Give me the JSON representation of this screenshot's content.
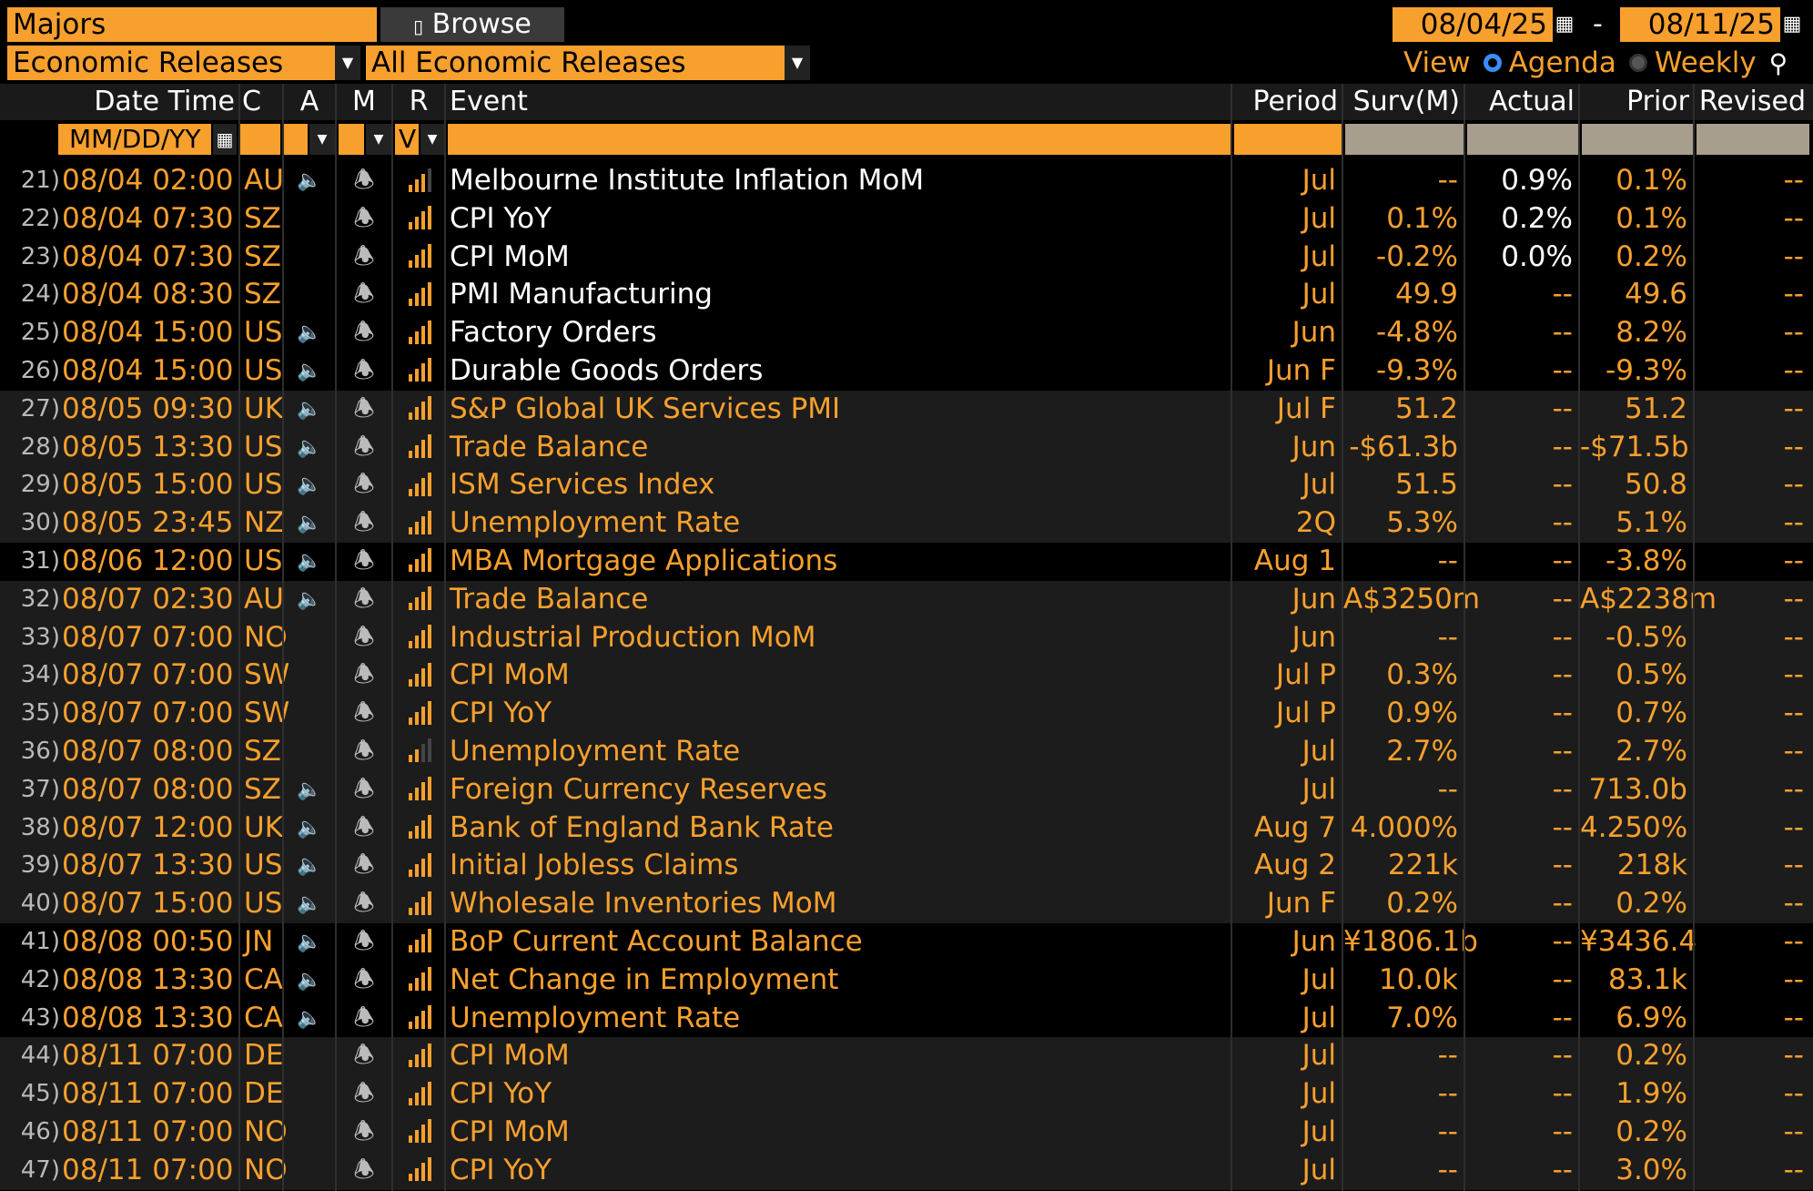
{
  "toolbar": {
    "list_name": "Majors",
    "browse_label": "Browse",
    "category": "Economic Releases",
    "filter": "All Economic Releases",
    "start_date": "08/04/25",
    "end_date": "08/11/25",
    "date_separator": "-",
    "view_label": "View",
    "agenda_label": "Agenda",
    "weekly_label": "Weekly",
    "selected_view": "Agenda"
  },
  "columns": {
    "datetime": "Date Time",
    "country": "C",
    "alert": "A",
    "memo": "M",
    "relevance": "R",
    "event": "Event",
    "period": "Period",
    "survey": "Surv(M)",
    "actual": "Actual",
    "prior": "Prior",
    "revised": "Revised"
  },
  "filters": {
    "date_placeholder": "MM/DD/YY",
    "relevance_value": "V"
  },
  "icons": {
    "browse": "book-icon",
    "calendar": "calendar-icon",
    "speaker": "speaker-icon",
    "bell": "bell-icon",
    "relevance": "signal-bars-icon",
    "search": "person-search-icon",
    "dropdown": "chevron-down-icon"
  },
  "colors": {
    "accent": "#f7a02d",
    "radio_selected": "#3b8df2"
  },
  "rows": [
    {
      "n": "21)",
      "dt": "08/04 02:00",
      "c": "AU",
      "spk": true,
      "rel": 3,
      "event": "Melbourne Institute Inflation MoM",
      "period": "Jul",
      "surv": "--",
      "actual": "0.9%",
      "prior": "0.1%",
      "revised": "--",
      "released": true
    },
    {
      "n": "22)",
      "dt": "08/04 07:30",
      "c": "SZ",
      "spk": false,
      "rel": 4,
      "event": "CPI YoY",
      "period": "Jul",
      "surv": "0.1%",
      "actual": "0.2%",
      "prior": "0.1%",
      "revised": "--",
      "released": true
    },
    {
      "n": "23)",
      "dt": "08/04 07:30",
      "c": "SZ",
      "spk": false,
      "rel": 4,
      "event": "CPI MoM",
      "period": "Jul",
      "surv": "-0.2%",
      "actual": "0.0%",
      "prior": "0.2%",
      "revised": "--",
      "released": true
    },
    {
      "n": "24)",
      "dt": "08/04 08:30",
      "c": "SZ",
      "spk": false,
      "rel": 4,
      "event": "PMI Manufacturing",
      "period": "Jul",
      "surv": "49.9",
      "actual": "--",
      "prior": "49.6",
      "revised": "--",
      "released": true
    },
    {
      "n": "25)",
      "dt": "08/04 15:00",
      "c": "US",
      "spk": true,
      "rel": 4,
      "event": "Factory Orders",
      "period": "Jun",
      "surv": "-4.8%",
      "actual": "--",
      "prior": "8.2%",
      "revised": "--",
      "released": true
    },
    {
      "n": "26)",
      "dt": "08/04 15:00",
      "c": "US",
      "spk": true,
      "rel": 4,
      "event": "Durable Goods Orders",
      "period": "Jun F",
      "surv": "-9.3%",
      "actual": "--",
      "prior": "-9.3%",
      "revised": "--",
      "released": true
    },
    {
      "n": "27)",
      "dt": "08/05 09:30",
      "c": "UK",
      "spk": true,
      "rel": 4,
      "event": "S&P Global UK Services PMI",
      "period": "Jul F",
      "surv": "51.2",
      "actual": "--",
      "prior": "51.2",
      "revised": "--",
      "released": false
    },
    {
      "n": "28)",
      "dt": "08/05 13:30",
      "c": "US",
      "spk": true,
      "rel": 4,
      "event": "Trade Balance",
      "period": "Jun",
      "surv": "-$61.3b",
      "actual": "--",
      "prior": "-$71.5b",
      "revised": "--",
      "released": false
    },
    {
      "n": "29)",
      "dt": "08/05 15:00",
      "c": "US",
      "spk": true,
      "rel": 4,
      "event": "ISM Services Index",
      "period": "Jul",
      "surv": "51.5",
      "actual": "--",
      "prior": "50.8",
      "revised": "--",
      "released": false
    },
    {
      "n": "30)",
      "dt": "08/05 23:45",
      "c": "NZ",
      "spk": true,
      "rel": 4,
      "event": "Unemployment Rate",
      "period": "2Q",
      "surv": "5.3%",
      "actual": "--",
      "prior": "5.1%",
      "revised": "--",
      "released": false
    },
    {
      "n": "31)",
      "dt": "08/06 12:00",
      "c": "US",
      "spk": true,
      "rel": 4,
      "event": "MBA Mortgage Applications",
      "period": "Aug 1",
      "surv": "--",
      "actual": "--",
      "prior": "-3.8%",
      "revised": "--",
      "released": false
    },
    {
      "n": "32)",
      "dt": "08/07 02:30",
      "c": "AU",
      "spk": true,
      "rel": 4,
      "event": "Trade Balance",
      "period": "Jun",
      "surv": "A$3250m",
      "actual": "--",
      "prior": "A$2238m",
      "revised": "--",
      "released": false
    },
    {
      "n": "33)",
      "dt": "08/07 07:00",
      "c": "NO",
      "spk": false,
      "rel": 4,
      "event": "Industrial Production MoM",
      "period": "Jun",
      "surv": "--",
      "actual": "--",
      "prior": "-0.5%",
      "revised": "--",
      "released": false
    },
    {
      "n": "34)",
      "dt": "08/07 07:00",
      "c": "SW",
      "spk": false,
      "rel": 4,
      "event": "CPI MoM",
      "period": "Jul P",
      "surv": "0.3%",
      "actual": "--",
      "prior": "0.5%",
      "revised": "--",
      "released": false
    },
    {
      "n": "35)",
      "dt": "08/07 07:00",
      "c": "SW",
      "spk": false,
      "rel": 4,
      "event": "CPI YoY",
      "period": "Jul P",
      "surv": "0.9%",
      "actual": "--",
      "prior": "0.7%",
      "revised": "--",
      "released": false
    },
    {
      "n": "36)",
      "dt": "08/07 08:00",
      "c": "SZ",
      "spk": false,
      "rel": 2,
      "event": "Unemployment Rate",
      "period": "Jul",
      "surv": "2.7%",
      "actual": "--",
      "prior": "2.7%",
      "revised": "--",
      "released": false
    },
    {
      "n": "37)",
      "dt": "08/07 08:00",
      "c": "SZ",
      "spk": true,
      "rel": 4,
      "event": "Foreign Currency Reserves",
      "period": "Jul",
      "surv": "--",
      "actual": "--",
      "prior": "713.0b",
      "revised": "--",
      "released": false
    },
    {
      "n": "38)",
      "dt": "08/07 12:00",
      "c": "UK",
      "spk": true,
      "rel": 4,
      "event": "Bank of England Bank Rate",
      "period": "Aug 7",
      "surv": "4.000%",
      "actual": "--",
      "prior": "4.250%",
      "revised": "--",
      "released": false
    },
    {
      "n": "39)",
      "dt": "08/07 13:30",
      "c": "US",
      "spk": true,
      "rel": 4,
      "event": "Initial Jobless Claims",
      "period": "Aug 2",
      "surv": "221k",
      "actual": "--",
      "prior": "218k",
      "revised": "--",
      "released": false
    },
    {
      "n": "40)",
      "dt": "08/07 15:00",
      "c": "US",
      "spk": true,
      "rel": 4,
      "event": "Wholesale Inventories MoM",
      "period": "Jun F",
      "surv": "0.2%",
      "actual": "--",
      "prior": "0.2%",
      "revised": "--",
      "released": false
    },
    {
      "n": "41)",
      "dt": "08/08 00:50",
      "c": "JN",
      "spk": true,
      "rel": 4,
      "event": "BoP Current Account Balance",
      "period": "Jun",
      "surv": "¥1806.1b",
      "actual": "--",
      "prior": "¥3436.4",
      "revised": "--",
      "released": false
    },
    {
      "n": "42)",
      "dt": "08/08 13:30",
      "c": "CA",
      "spk": true,
      "rel": 4,
      "event": "Net Change in Employment",
      "period": "Jul",
      "surv": "10.0k",
      "actual": "--",
      "prior": "83.1k",
      "revised": "--",
      "released": false
    },
    {
      "n": "43)",
      "dt": "08/08 13:30",
      "c": "CA",
      "spk": true,
      "rel": 4,
      "event": "Unemployment Rate",
      "period": "Jul",
      "surv": "7.0%",
      "actual": "--",
      "prior": "6.9%",
      "revised": "--",
      "released": false
    },
    {
      "n": "44)",
      "dt": "08/11 07:00",
      "c": "DE",
      "spk": false,
      "rel": 4,
      "event": "CPI MoM",
      "period": "Jul",
      "surv": "--",
      "actual": "--",
      "prior": "0.2%",
      "revised": "--",
      "released": false
    },
    {
      "n": "45)",
      "dt": "08/11 07:00",
      "c": "DE",
      "spk": false,
      "rel": 4,
      "event": "CPI YoY",
      "period": "Jul",
      "surv": "--",
      "actual": "--",
      "prior": "1.9%",
      "revised": "--",
      "released": false
    },
    {
      "n": "46)",
      "dt": "08/11 07:00",
      "c": "NO",
      "spk": false,
      "rel": 4,
      "event": "CPI MoM",
      "period": "Jul",
      "surv": "--",
      "actual": "--",
      "prior": "0.2%",
      "revised": "--",
      "released": false
    },
    {
      "n": "47)",
      "dt": "08/11 07:00",
      "c": "NO",
      "spk": false,
      "rel": 4,
      "event": "CPI YoY",
      "period": "Jul",
      "surv": "--",
      "actual": "--",
      "prior": "3.0%",
      "revised": "--",
      "released": false
    }
  ]
}
